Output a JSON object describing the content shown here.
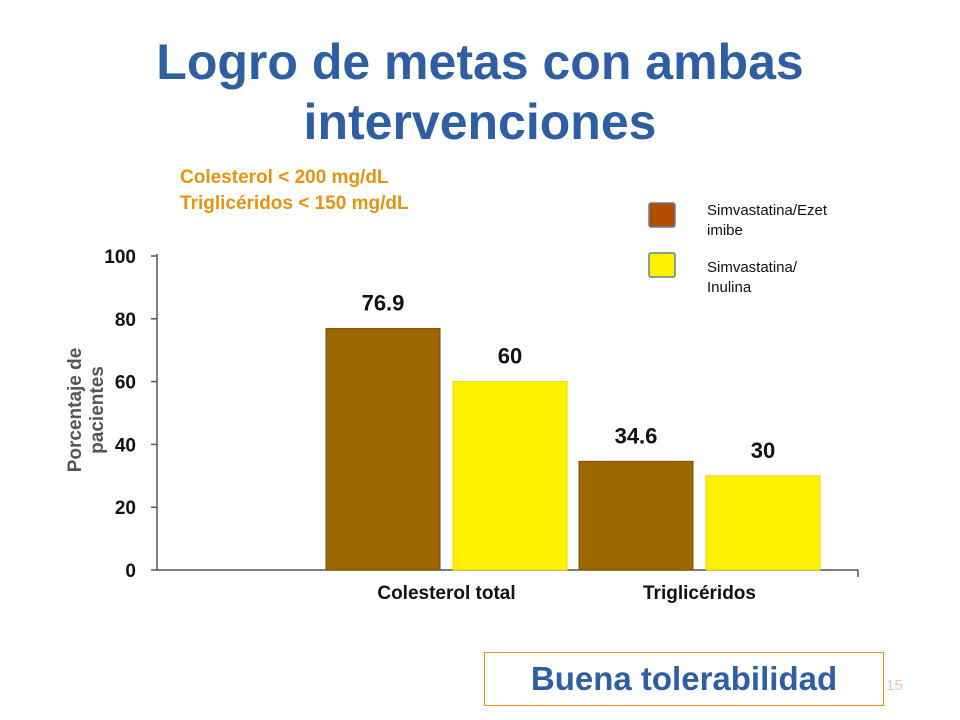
{
  "slide": {
    "title_line1": "Logro de metas con ambas",
    "title_line2": "intervenciones",
    "subtitle_line1": "Colesterol < 200 mg/dL",
    "subtitle_line2": "Triglicéridos < 150 mg/dL",
    "footer_text": "Buena tolerabilidad",
    "page_number": "15"
  },
  "chart_data": {
    "type": "bar",
    "title": "",
    "xlabel": "",
    "ylabel_lines": [
      "Porcentaje de",
      "pacientes"
    ],
    "categories": [
      "Colesterol total",
      "Triglicéridos"
    ],
    "series": [
      {
        "name": "Simvastatina/Ezetimibe",
        "legend_lines": [
          "Simvastatina/Ezet",
          "imibe"
        ],
        "color": "#9c6600",
        "legend_color": "#b34d00",
        "values": [
          76.9,
          34.6
        ],
        "labels": [
          "76.9",
          "34.6"
        ]
      },
      {
        "name": "Simvastatina/Inulina",
        "legend_lines": [
          "Simvastatina/",
          "Inulina"
        ],
        "color": "#fff200",
        "legend_color": "#fff200",
        "values": [
          60,
          30
        ],
        "labels": [
          "60",
          "30"
        ]
      }
    ],
    "ylim": [
      0,
      100
    ],
    "yticks": [
      0,
      20,
      40,
      60,
      80,
      100
    ],
    "grid": false,
    "legend_position": "top-right"
  }
}
